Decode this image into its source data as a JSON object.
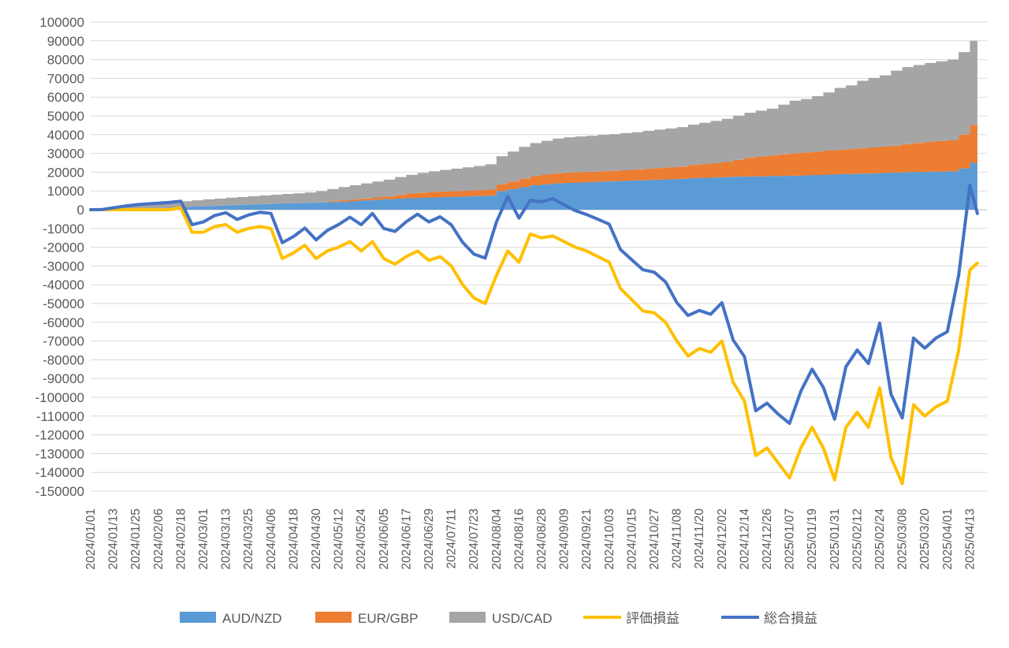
{
  "chart_data": {
    "type": "area+line",
    "title": "",
    "xlabel": "",
    "ylabel": "",
    "ylim": [
      -150000,
      100000
    ],
    "ytick_step": 10000,
    "grid": true,
    "legend_position": "bottom",
    "x_tick_labels": [
      "2024/01/01",
      "2024/01/13",
      "2024/01/25",
      "2024/02/06",
      "2024/02/18",
      "2024/03/01",
      "2024/03/13",
      "2024/03/25",
      "2024/04/06",
      "2024/04/18",
      "2024/04/30",
      "2024/05/12",
      "2024/05/24",
      "2024/06/05",
      "2024/06/17",
      "2024/06/29",
      "2024/07/11",
      "2024/07/23",
      "2024/08/04",
      "2024/08/16",
      "2024/08/28",
      "2024/09/09",
      "2024/09/21",
      "2024/10/03",
      "2024/10/15",
      "2024/10/27",
      "2024/11/08",
      "2024/11/20",
      "2024/12/02",
      "2024/12/14",
      "2024/12/26",
      "2025/01/07",
      "2025/01/19",
      "2025/01/31",
      "2025/02/12",
      "2025/02/24",
      "2025/03/08",
      "2025/03/20",
      "2025/04/01",
      "2025/04/13"
    ],
    "x": [
      "2024/01/01",
      "2024/01/07",
      "2024/01/13",
      "2024/01/19",
      "2024/01/25",
      "2024/01/31",
      "2024/02/06",
      "2024/02/12",
      "2024/02/18",
      "2024/02/24",
      "2024/03/01",
      "2024/03/07",
      "2024/03/13",
      "2024/03/19",
      "2024/03/25",
      "2024/03/31",
      "2024/04/06",
      "2024/04/12",
      "2024/04/18",
      "2024/04/24",
      "2024/04/30",
      "2024/05/06",
      "2024/05/12",
      "2024/05/18",
      "2024/05/24",
      "2024/05/30",
      "2024/06/05",
      "2024/06/11",
      "2024/06/17",
      "2024/06/23",
      "2024/06/29",
      "2024/07/05",
      "2024/07/11",
      "2024/07/17",
      "2024/07/23",
      "2024/07/29",
      "2024/08/04",
      "2024/08/10",
      "2024/08/16",
      "2024/08/22",
      "2024/08/28",
      "2024/09/03",
      "2024/09/09",
      "2024/09/15",
      "2024/09/21",
      "2024/09/27",
      "2024/10/03",
      "2024/10/09",
      "2024/10/15",
      "2024/10/21",
      "2024/10/27",
      "2024/11/02",
      "2024/11/08",
      "2024/11/14",
      "2024/11/20",
      "2024/11/26",
      "2024/12/02",
      "2024/12/08",
      "2024/12/14",
      "2024/12/20",
      "2024/12/26",
      "2025/01/01",
      "2025/01/07",
      "2025/01/13",
      "2025/01/19",
      "2025/01/25",
      "2025/01/31",
      "2025/02/06",
      "2025/02/12",
      "2025/02/18",
      "2025/02/24",
      "2025/03/02",
      "2025/03/08",
      "2025/03/14",
      "2025/03/20",
      "2025/03/26",
      "2025/04/01",
      "2025/04/07",
      "2025/04/13",
      "2025/04/17"
    ],
    "series": [
      {
        "name": "AUD/NZD",
        "kind": "area",
        "color": "#5b9bd5",
        "values": [
          0,
          100,
          200,
          400,
          600,
          800,
          1000,
          1200,
          1500,
          1800,
          2000,
          2200,
          2400,
          2600,
          2800,
          3000,
          3200,
          3400,
          3500,
          3700,
          3900,
          4000,
          4300,
          4600,
          5000,
          5300,
          5600,
          5900,
          6100,
          6300,
          6500,
          6700,
          6900,
          7100,
          7300,
          7500,
          10000,
          11000,
          12000,
          13000,
          13500,
          14000,
          14300,
          14500,
          14700,
          15000,
          15200,
          15400,
          15600,
          15800,
          16000,
          16200,
          16500,
          16800,
          17000,
          17200,
          17400,
          17600,
          17700,
          17800,
          17900,
          18000,
          18100,
          18300,
          18500,
          18700,
          18900,
          19000,
          19200,
          19400,
          19600,
          19800,
          20000,
          20100,
          20200,
          20300,
          20500,
          22000,
          25000,
          26000
        ]
      },
      {
        "name": "EUR/GBP",
        "kind": "area",
        "color": "#ed7d31",
        "values": [
          0,
          0,
          0,
          0,
          0,
          0,
          0,
          0,
          0,
          0,
          0,
          0,
          0,
          0,
          0,
          0,
          0,
          0,
          0,
          0,
          0,
          500,
          800,
          900,
          1000,
          1200,
          1400,
          2000,
          2500,
          2800,
          3000,
          3000,
          3000,
          3000,
          3000,
          3200,
          3500,
          4000,
          4500,
          5000,
          5200,
          5400,
          5500,
          5500,
          5500,
          5500,
          5500,
          5600,
          5700,
          6000,
          6200,
          6300,
          6500,
          7000,
          7300,
          7600,
          8000,
          9000,
          10000,
          10500,
          11000,
          11500,
          12000,
          12200,
          12500,
          12800,
          13000,
          13300,
          13500,
          13800,
          14000,
          14300,
          15000,
          15500,
          16000,
          16300,
          16500,
          18000,
          20000,
          22000
        ]
      },
      {
        "name": "USD/CAD",
        "kind": "area",
        "color": "#a5a5a5",
        "values": [
          0,
          300,
          800,
          1500,
          2000,
          2300,
          2500,
          2700,
          3000,
          3200,
          3500,
          3700,
          4000,
          4200,
          4400,
          4600,
          4800,
          5000,
          5200,
          5500,
          6000,
          6500,
          7000,
          7500,
          8000,
          8500,
          9000,
          9500,
          10000,
          10500,
          11000,
          11500,
          12000,
          12500,
          13000,
          13500,
          15000,
          16000,
          17000,
          17500,
          18000,
          18500,
          18800,
          19000,
          19200,
          19400,
          19600,
          19800,
          20000,
          20200,
          20500,
          20800,
          21000,
          21500,
          22000,
          22500,
          23000,
          23500,
          24000,
          24500,
          25000,
          26500,
          28000,
          28500,
          29500,
          31000,
          33000,
          34000,
          36000,
          37000,
          38000,
          40000,
          41000,
          41500,
          42000,
          42500,
          43000,
          44000,
          45000,
          46000
        ]
      },
      {
        "name": "評価損益",
        "kind": "line",
        "color": "#ffc000",
        "values": [
          0,
          0,
          0,
          0,
          0,
          0,
          0,
          0,
          1000,
          -12000,
          -12000,
          -9000,
          -8000,
          -12000,
          -10000,
          -9000,
          -10000,
          -26000,
          -23000,
          -19000,
          -26000,
          -22000,
          -20000,
          -17000,
          -22000,
          -17000,
          -26000,
          -29000,
          -25000,
          -22000,
          -27000,
          -25000,
          -30000,
          -40000,
          -47000,
          -50000,
          -35000,
          -22000,
          -28000,
          -13000,
          -15000,
          -14000,
          -17000,
          -20000,
          -22000,
          -25000,
          -28000,
          -42000,
          -48000,
          -54000,
          -55000,
          -60000,
          -70000,
          -78000,
          -74000,
          -76000,
          -70000,
          -92000,
          -102000,
          -131000,
          -127000,
          -135000,
          -143000,
          -127000,
          -116000,
          -127000,
          -144000,
          -116000,
          -108000,
          -116000,
          -95000,
          -132000,
          -146000,
          -104000,
          -110000,
          -105000,
          -102000,
          -75000,
          -32000,
          -28500
        ]
      },
      {
        "name": "総合損益",
        "kind": "line",
        "color": "#4472c4",
        "values": [
          0,
          100,
          1000,
          1900,
          2600,
          3100,
          3500,
          3900,
          4500,
          -8000,
          -6500,
          -3100,
          -1600,
          -5200,
          -2800,
          -1400,
          -2000,
          -17600,
          -14300,
          -9800,
          -16100,
          -11000,
          -7900,
          -4000,
          -8000,
          -2000,
          -10000,
          -11600,
          -6400,
          -2400,
          -6500,
          -3800,
          -8100,
          -17400,
          -23700,
          -25800,
          -6500,
          7000,
          -4500,
          5000,
          4200,
          5900,
          2600,
          -500,
          -2600,
          -5100,
          -7700,
          -21200,
          -26700,
          -32000,
          -33300,
          -38500,
          -49500,
          -56400,
          -53700,
          -55700,
          -49600,
          -69500,
          -78300,
          -107200,
          -103100,
          -109000,
          -113900,
          -96800,
          -85000,
          -94700,
          -111700,
          -83700,
          -74800,
          -82000,
          -60400,
          -98300,
          -111000,
          -68400,
          -73800,
          -68400,
          -65000,
          -35000,
          13000,
          -2000
        ]
      }
    ]
  }
}
